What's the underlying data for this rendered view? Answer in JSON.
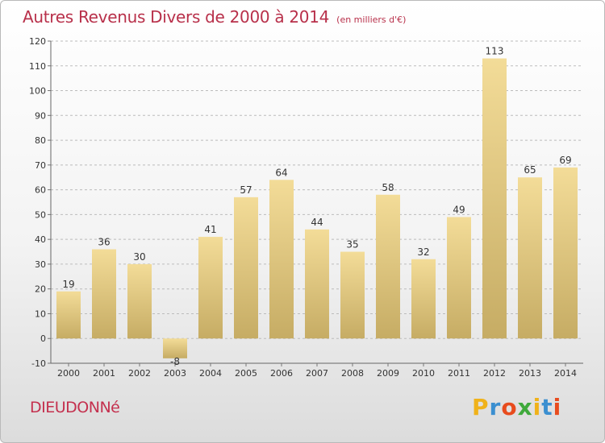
{
  "title": "Autres Revenus Divers de 2000 à 2014",
  "subtitle": "(en milliers d'€)",
  "commune": "DIEUDONNé",
  "logo": {
    "letters": [
      "P",
      "r",
      "o",
      "x",
      "i",
      "t",
      "i"
    ],
    "colors": [
      "#f0b21a",
      "#3b8fd0",
      "#e84c1e",
      "#3fa93b",
      "#f0b21a",
      "#3b8fd0",
      "#e84c1e"
    ]
  },
  "colors": {
    "bar_light": "#f3dc98",
    "bar_dark": "#c6ac64",
    "title": "#b8304a",
    "grid": "#bcbcbc"
  },
  "chart_data": {
    "type": "bar",
    "title": "Autres Revenus Divers de 2000 à 2014",
    "subtitle": "(en milliers d'€)",
    "categories": [
      "2000",
      "2001",
      "2002",
      "2003",
      "2004",
      "2005",
      "2006",
      "2007",
      "2008",
      "2009",
      "2010",
      "2011",
      "2012",
      "2013",
      "2014"
    ],
    "values": [
      19,
      36,
      30,
      -8,
      41,
      57,
      64,
      44,
      35,
      58,
      32,
      49,
      113,
      65,
      69
    ],
    "ylim": [
      -10,
      120
    ],
    "yticks": [
      -10,
      0,
      10,
      20,
      30,
      40,
      50,
      60,
      70,
      80,
      90,
      100,
      110,
      120
    ],
    "grid": "horizontal dashed",
    "data_labels": true
  }
}
